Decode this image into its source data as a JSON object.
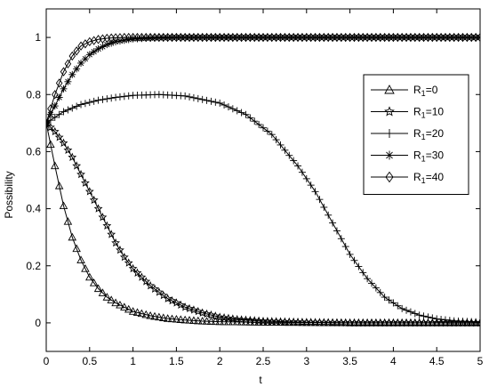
{
  "chart_data": {
    "type": "line",
    "xlabel": "t",
    "ylabel": "Possibility",
    "xlim": [
      0,
      5
    ],
    "ylim": [
      -0.1,
      1.1
    ],
    "xticks": [
      "0",
      "0.5",
      "1",
      "1.5",
      "2",
      "2.5",
      "3",
      "3.5",
      "4",
      "4.5",
      "5"
    ],
    "yticks": [
      "0",
      "0.2",
      "0.4",
      "0.6",
      "0.8",
      "1"
    ],
    "legend_position": "right",
    "grid": false,
    "line_color": "#000000",
    "series": [
      {
        "name": "R1=0",
        "name_main": "R",
        "name_sub": "1",
        "name_rest": "=0",
        "marker": "triangle",
        "x": [
          0,
          0.1,
          0.2,
          0.3,
          0.4,
          0.5,
          0.6,
          0.7,
          0.8,
          0.9,
          1.0,
          1.2,
          1.4,
          1.6,
          1.8,
          2.0,
          2.5,
          3.0,
          3.5,
          4.0,
          4.5,
          5.0
        ],
        "y": [
          0.7,
          0.55,
          0.41,
          0.3,
          0.22,
          0.16,
          0.12,
          0.09,
          0.07,
          0.055,
          0.04,
          0.025,
          0.015,
          0.01,
          0.006,
          0.004,
          0.002,
          0.001,
          0.0,
          0.0,
          0.0,
          0.0
        ]
      },
      {
        "name": "R1=10",
        "name_main": "R",
        "name_sub": "1",
        "name_rest": "=10",
        "marker": "star",
        "x": [
          0,
          0.1,
          0.2,
          0.3,
          0.4,
          0.5,
          0.6,
          0.7,
          0.8,
          0.9,
          1.0,
          1.2,
          1.4,
          1.6,
          1.8,
          2.0,
          2.2,
          2.5,
          3.0,
          3.5,
          4.0,
          4.5,
          5.0
        ],
        "y": [
          0.7,
          0.67,
          0.63,
          0.58,
          0.52,
          0.46,
          0.4,
          0.34,
          0.28,
          0.23,
          0.19,
          0.13,
          0.085,
          0.055,
          0.035,
          0.02,
          0.012,
          0.006,
          0.002,
          0.0,
          0.0,
          0.0,
          0.0
        ]
      },
      {
        "name": "R1=20",
        "name_main": "R",
        "name_sub": "1",
        "name_rest": "=20",
        "marker": "plus",
        "x": [
          0,
          0.2,
          0.4,
          0.6,
          0.8,
          1.0,
          1.3,
          1.6,
          2.0,
          2.3,
          2.6,
          2.9,
          3.1,
          3.3,
          3.5,
          3.7,
          3.9,
          4.1,
          4.3,
          4.5,
          4.7,
          5.0
        ],
        "y": [
          0.7,
          0.74,
          0.765,
          0.78,
          0.79,
          0.797,
          0.8,
          0.795,
          0.77,
          0.73,
          0.66,
          0.55,
          0.46,
          0.35,
          0.24,
          0.155,
          0.09,
          0.05,
          0.027,
          0.014,
          0.007,
          0.003
        ]
      },
      {
        "name": "R1=30",
        "name_main": "R",
        "name_sub": "1",
        "name_rest": "=30",
        "marker": "asterisk",
        "x": [
          0,
          0.1,
          0.2,
          0.3,
          0.4,
          0.5,
          0.6,
          0.7,
          0.8,
          0.9,
          1.0,
          1.2,
          1.5,
          2.0,
          2.5,
          3.0,
          3.5,
          4.0,
          4.5,
          5.0
        ],
        "y": [
          0.7,
          0.76,
          0.82,
          0.87,
          0.91,
          0.94,
          0.96,
          0.975,
          0.985,
          0.99,
          0.995,
          0.998,
          1.0,
          1.0,
          1.0,
          1.0,
          1.0,
          1.0,
          1.0,
          1.0
        ]
      },
      {
        "name": "R1=40",
        "name_main": "R",
        "name_sub": "1",
        "name_rest": "=40",
        "marker": "diamond",
        "x": [
          0,
          0.1,
          0.2,
          0.3,
          0.4,
          0.5,
          0.6,
          0.7,
          0.8,
          0.9,
          1.0,
          1.2,
          1.5,
          2.0,
          2.5,
          3.0,
          3.5,
          4.0,
          4.5,
          5.0
        ],
        "y": [
          0.7,
          0.8,
          0.88,
          0.935,
          0.97,
          0.985,
          0.993,
          0.997,
          0.999,
          1.0,
          1.0,
          1.0,
          1.0,
          1.0,
          1.0,
          1.0,
          1.0,
          1.0,
          1.0,
          1.0
        ]
      }
    ]
  }
}
